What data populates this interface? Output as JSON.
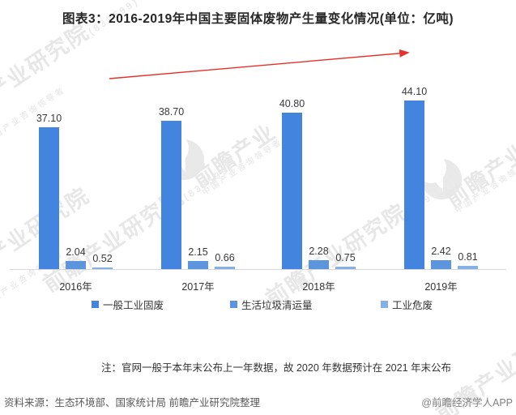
{
  "title": "图表3：2016-2019年中国主要固体废物产生量变化情况(单位：亿吨)",
  "chart_data": {
    "type": "bar",
    "categories": [
      "2016年",
      "2017年",
      "2018年",
      "2019年"
    ],
    "series": [
      {
        "name": "一般工业固废",
        "color": "#4384DE",
        "values": [
          37.1,
          38.7,
          40.8,
          44.1
        ]
      },
      {
        "name": "生活垃圾清运量",
        "color": "#5C95DD",
        "values": [
          2.04,
          2.15,
          2.28,
          2.42
        ]
      },
      {
        "name": "工业危废",
        "color": "#83B1E6",
        "values": [
          0.52,
          0.66,
          0.75,
          0.81
        ]
      }
    ],
    "unit": "亿吨",
    "value_labels": true,
    "value_label_decimals": 2,
    "grid": false,
    "legend_position": "bottom",
    "annotations": {
      "trend_arrow": {
        "direction": "up-right",
        "color": "#e53228"
      }
    }
  },
  "note": "注：官网一般于本年末公布上一年数据，故 2020 年数据预计在 2021 年末公布",
  "source": "资料来源：生态环境部、国家统计局 前瞻产业研究院整理",
  "credit": "@前瞻经济学人APP",
  "watermark": {
    "brand": "前瞻产业研究院",
    "brand_short": "前瞻产业",
    "tagline": "中国产业咨询领导者",
    "stock_code": "(839599)"
  }
}
